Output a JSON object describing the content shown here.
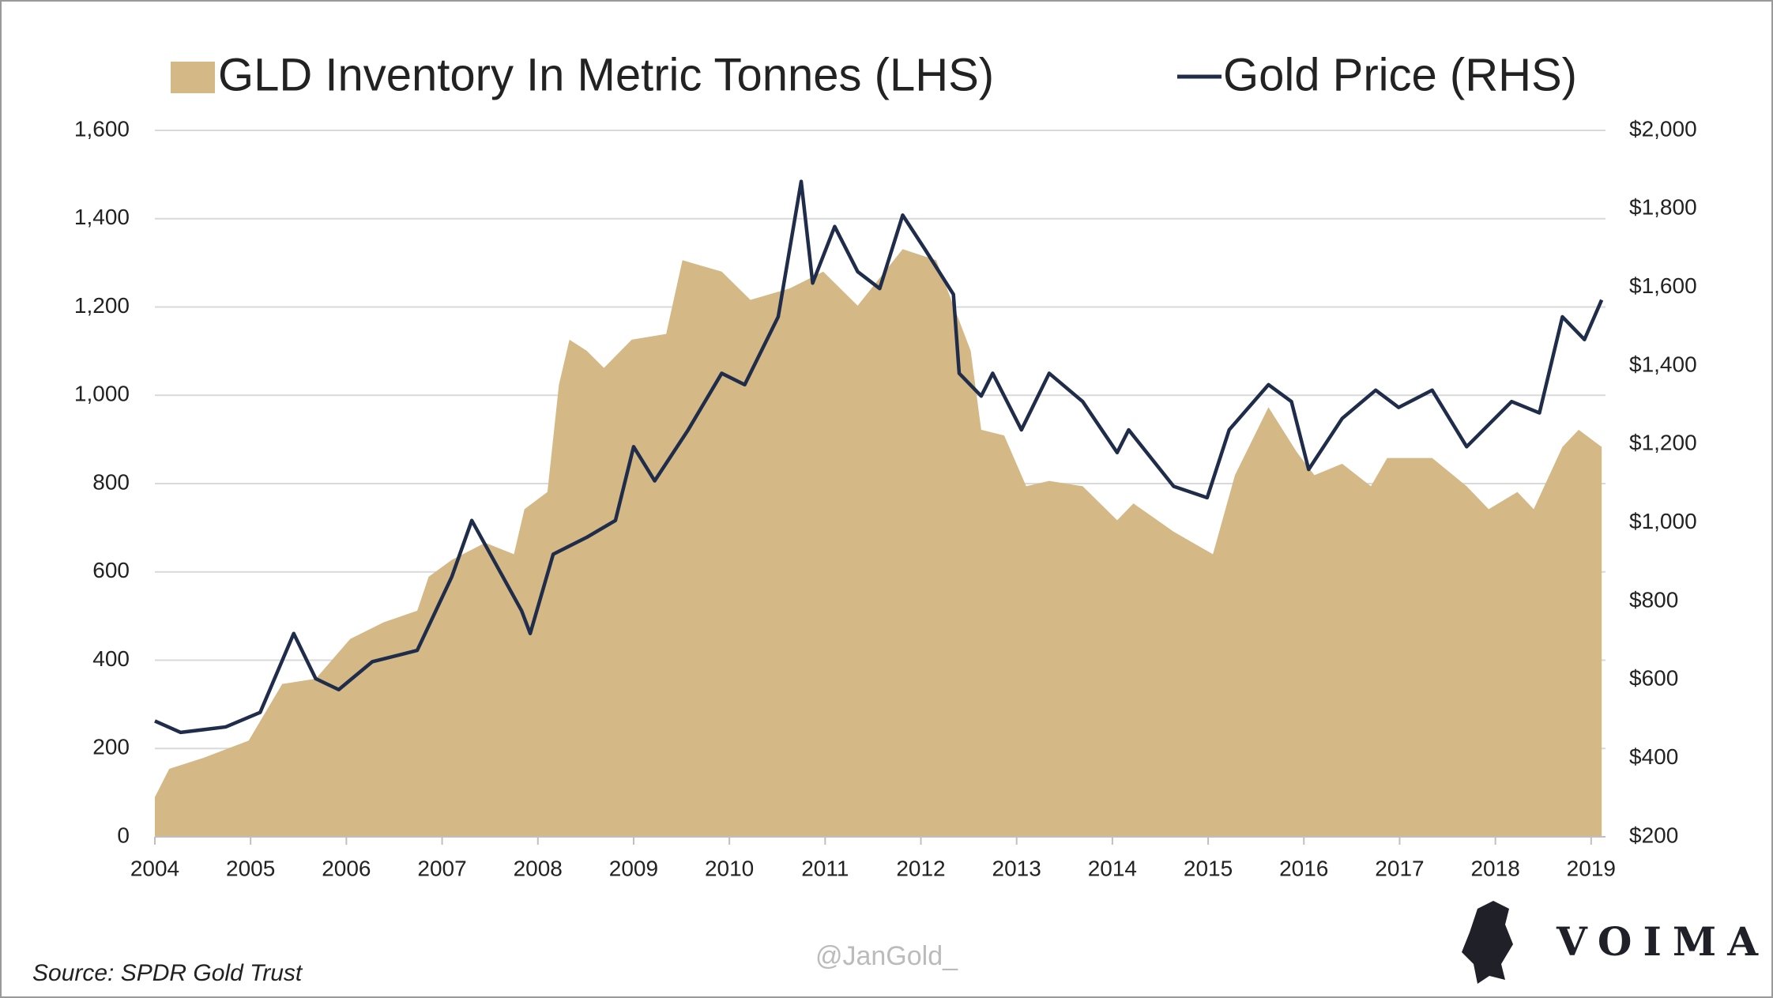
{
  "chart_data": {
    "type": "area_line",
    "xlim": [
      2004,
      2019.15
    ],
    "xticks": [
      2004,
      2005,
      2006,
      2007,
      2008,
      2009,
      2010,
      2011,
      2012,
      2013,
      2014,
      2015,
      2016,
      2017,
      2018,
      2019
    ],
    "ylim": [
      0,
      1600
    ],
    "yticks": [
      0,
      200,
      400,
      600,
      800,
      {
        "value": 1000,
        "label": "1,000"
      },
      {
        "value": 1200,
        "label": "1,200"
      },
      {
        "value": 1400,
        "label": "1,400"
      },
      {
        "value": 1600,
        "label": "1,600"
      }
    ],
    "y2lim": [
      200,
      2000
    ],
    "y2ticks": [
      {
        "value": 200,
        "label": "$200"
      },
      {
        "value": 400,
        "label": "$400"
      },
      {
        "value": 600,
        "label": "$600"
      },
      {
        "value": 800,
        "label": "$800"
      },
      {
        "value": 1000,
        "label": "$1,000"
      },
      {
        "value": 1200,
        "label": "$1,200"
      },
      {
        "value": 1400,
        "label": "$1,400"
      },
      {
        "value": 1600,
        "label": "$1,600"
      },
      {
        "value": 1800,
        "label": "$1,800"
      },
      {
        "value": 2000,
        "label": "$2,000"
      }
    ],
    "grid": true,
    "series": [
      {
        "name": "GLD Inventory In Metric Tonnes (LHS)",
        "kind": "area",
        "color": "#d4b886",
        "x": [
          2004.0,
          2004.15,
          2004.51,
          2004.98,
          2005.33,
          2005.68,
          2006.04,
          2006.39,
          2006.74,
          2006.86,
          2007.1,
          2007.45,
          2007.75,
          2007.86,
          2008.1,
          2008.22,
          2008.33,
          2008.51,
          2008.69,
          2008.98,
          2009.34,
          2009.51,
          2009.92,
          2010.22,
          2010.63,
          2010.98,
          2011.34,
          2011.81,
          2012.16,
          2012.52,
          2012.63,
          2012.87,
          2013.1,
          2013.34,
          2013.69,
          2014.05,
          2014.22,
          2014.64,
          2015.05,
          2015.28,
          2015.63,
          2015.93,
          2016.11,
          2016.4,
          2016.7,
          2016.87,
          2017.34,
          2017.7,
          2017.93,
          2018.23,
          2018.4,
          2018.7,
          2018.87,
          2019.11
        ],
        "values": [
          90,
          154,
          179,
          218,
          346,
          358,
          448,
          486,
          512,
          589,
          627,
          666,
          640,
          742,
          781,
          1024,
          1126,
          1101,
          1062,
          1126,
          1139,
          1306,
          1280,
          1216,
          1242,
          1280,
          1203,
          1331,
          1306,
          1101,
          922,
          909,
          794,
          806,
          794,
          717,
          755,
          691,
          640,
          819,
          973,
          870,
          819,
          845,
          794,
          858,
          858,
          794,
          742,
          781,
          742,
          883,
          922,
          883
        ]
      },
      {
        "name": "Gold Price (RHS)",
        "kind": "line",
        "axis": "y2",
        "color": "#1f2d4a",
        "x": [
          2004.0,
          2004.27,
          2004.74,
          2005.1,
          2005.45,
          2005.68,
          2005.92,
          2006.27,
          2006.74,
          2007.1,
          2007.31,
          2007.57,
          2007.83,
          2007.92,
          2008.16,
          2008.51,
          2008.81,
          2009.0,
          2009.22,
          2009.57,
          2009.92,
          2010.16,
          2010.51,
          2010.75,
          2010.87,
          2011.1,
          2011.34,
          2011.57,
          2011.81,
          2012.04,
          2012.34,
          2012.4,
          2012.63,
          2012.75,
          2013.05,
          2013.34,
          2013.69,
          2014.05,
          2014.17,
          2014.64,
          2014.99,
          2015.22,
          2015.63,
          2015.87,
          2016.05,
          2016.4,
          2016.75,
          2016.99,
          2017.34,
          2017.7,
          2018.17,
          2018.46,
          2018.7,
          2018.93,
          2019.11
        ],
        "values": [
          495,
          466,
          480,
          517,
          718,
          603,
          575,
          646,
          675,
          862,
          1006,
          891,
          776,
          718,
          920,
          963,
          1006,
          1194,
          1107,
          1237,
          1381,
          1352,
          1525,
          1870,
          1611,
          1755,
          1640,
          1597,
          1784,
          1698,
          1582,
          1381,
          1323,
          1381,
          1237,
          1381,
          1309,
          1179,
          1237,
          1093,
          1064,
          1237,
          1352,
          1309,
          1136,
          1266,
          1338,
          1294,
          1338,
          1194,
          1309,
          1280,
          1525,
          1467,
          1568
        ]
      }
    ],
    "source": "Source: SPDR Gold Trust",
    "watermark": "@JanGold_",
    "brand": "VOIMA"
  }
}
